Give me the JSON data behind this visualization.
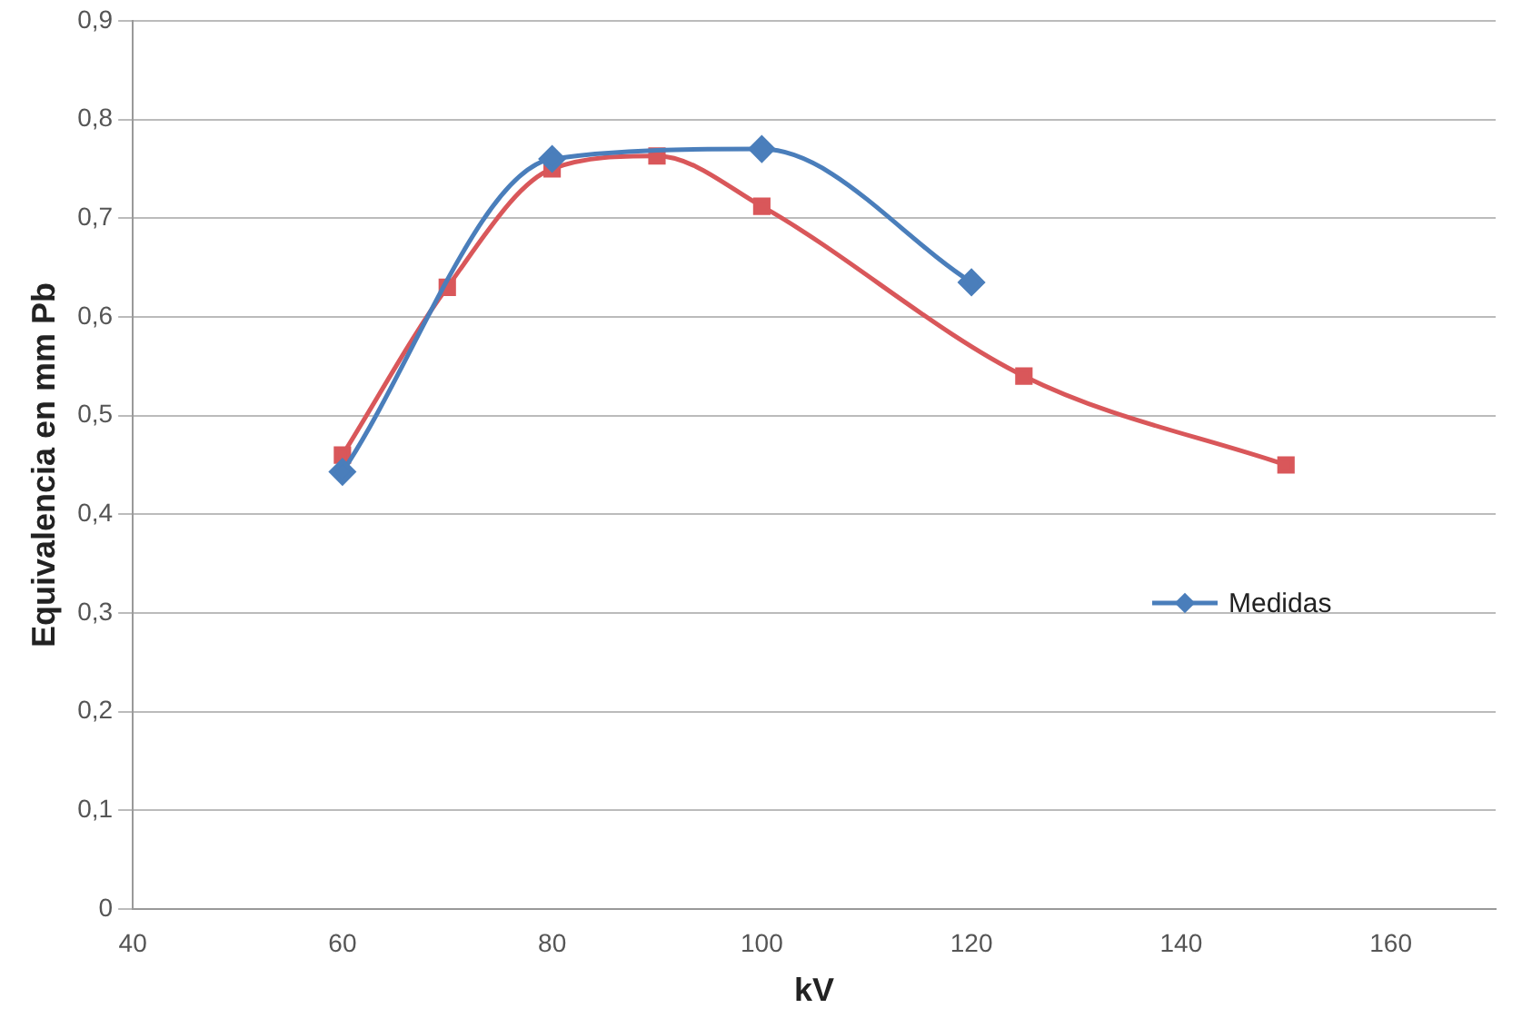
{
  "chart_data": {
    "type": "line",
    "xlabel": "kV",
    "ylabel": "Equivalencia en mm Pb",
    "series": [
      {
        "name": "Medidas",
        "color": "#4a7ebb",
        "marker": "diamond",
        "x": [
          60,
          80,
          100,
          120
        ],
        "values": [
          0.443,
          0.76,
          0.77,
          0.635
        ]
      },
      {
        "color": "#d9575a",
        "marker": "square",
        "x": [
          60,
          70,
          80,
          90,
          100,
          125,
          150
        ],
        "values": [
          0.46,
          0.63,
          0.75,
          0.763,
          0.712,
          0.54,
          0.45
        ]
      }
    ],
    "xlim": [
      40,
      170
    ],
    "xticks": [
      40,
      60,
      80,
      100,
      120,
      140,
      160
    ],
    "ylim": [
      0,
      0.9
    ],
    "yticks": [
      0,
      {
        "value": 0.1,
        "label": "0,1"
      },
      {
        "value": 0.2,
        "label": "0,2"
      },
      {
        "value": 0.3,
        "label": "0,3"
      },
      {
        "value": 0.4,
        "label": "0,4"
      },
      {
        "value": 0.5,
        "label": "0,5"
      },
      {
        "value": 0.6,
        "label": "0,6"
      },
      {
        "value": 0.7,
        "label": "0,7"
      },
      {
        "value": 0.8,
        "label": "0,8"
      },
      {
        "value": 0.9,
        "label": "0,9"
      }
    ],
    "grid": "y",
    "legend": "bottom right",
    "line_style": "solid"
  }
}
